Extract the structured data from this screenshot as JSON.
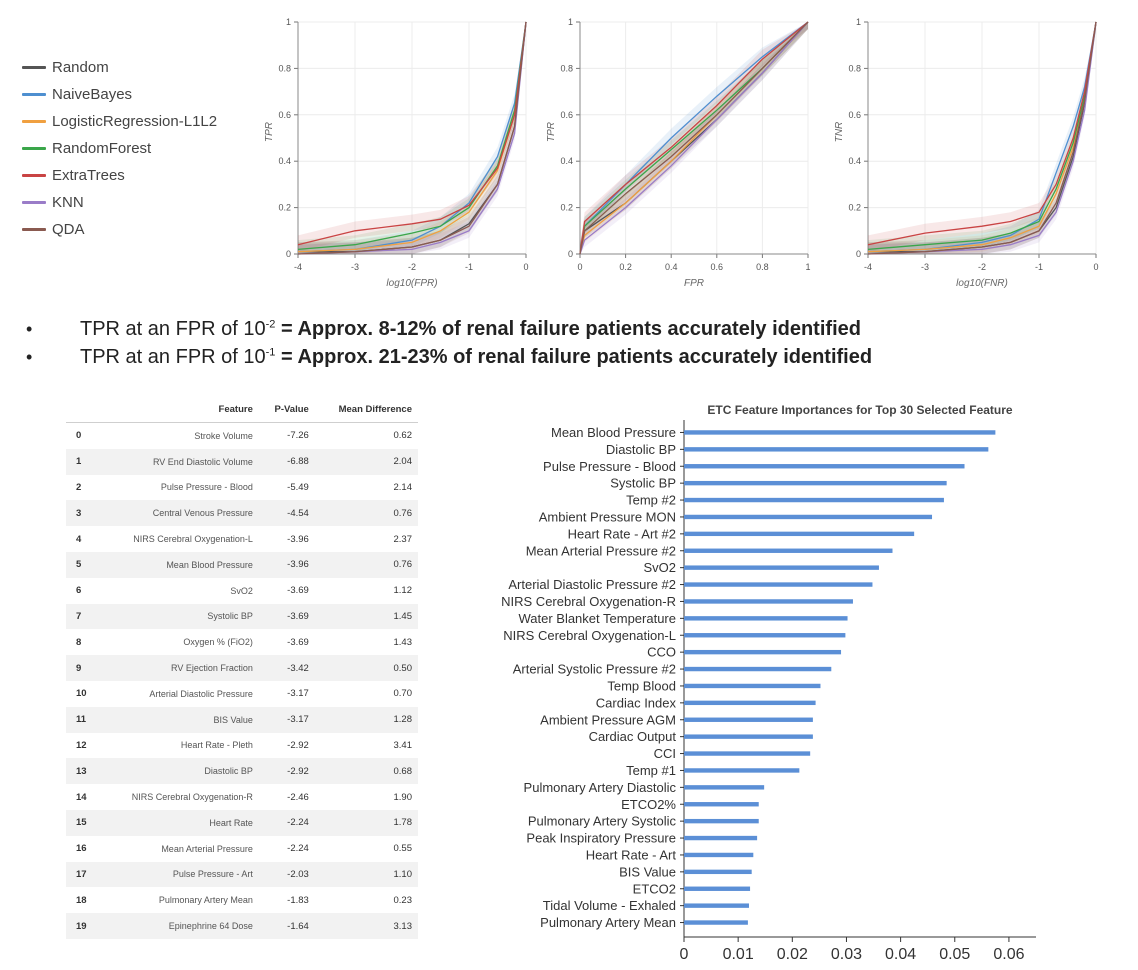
{
  "legend": [
    {
      "name": "Random",
      "color": "#555555"
    },
    {
      "name": "NaiveBayes",
      "color": "#4e8fd0"
    },
    {
      "name": "LogisticRegression-L1L2",
      "color": "#f0a040"
    },
    {
      "name": "RandomForest",
      "color": "#3aa64a"
    },
    {
      "name": "ExtraTrees",
      "color": "#c94444"
    },
    {
      "name": "KNN",
      "color": "#9a7cc8"
    },
    {
      "name": "QDA",
      "color": "#8a5a50"
    }
  ],
  "bullets": [
    {
      "dot": "•",
      "prefix": "TPR at an FPR of 10",
      "exp": "-2",
      "strong": " = Approx. 8-12% of renal failure patients accurately identified"
    },
    {
      "dot": "•",
      "prefix": "TPR at an FPR of 10",
      "exp": "-1",
      "strong": " = Approx. 21-23% of renal failure patients accurately identified"
    }
  ],
  "table": {
    "headers": [
      "",
      "Feature",
      "P-Value",
      "Mean Difference"
    ],
    "rows": [
      [
        "0",
        "Stroke Volume",
        "-7.26",
        "0.62"
      ],
      [
        "1",
        "RV End Diastolic Volume",
        "-6.88",
        "2.04"
      ],
      [
        "2",
        "Pulse Pressure - Blood",
        "-5.49",
        "2.14"
      ],
      [
        "3",
        "Central Venous Pressure",
        "-4.54",
        "0.76"
      ],
      [
        "4",
        "NIRS Cerebral Oxygenation-L",
        "-3.96",
        "2.37"
      ],
      [
        "5",
        "Mean Blood Pressure",
        "-3.96",
        "0.76"
      ],
      [
        "6",
        "SvO2",
        "-3.69",
        "1.12"
      ],
      [
        "7",
        "Systolic BP",
        "-3.69",
        "1.45"
      ],
      [
        "8",
        "Oxygen % (FiO2)",
        "-3.69",
        "1.43"
      ],
      [
        "9",
        "RV Ejection Fraction",
        "-3.42",
        "0.50"
      ],
      [
        "10",
        "Arterial Diastolic Pressure",
        "-3.17",
        "0.70"
      ],
      [
        "11",
        "BIS Value",
        "-3.17",
        "1.28"
      ],
      [
        "12",
        "Heart Rate - Pleth",
        "-2.92",
        "3.41"
      ],
      [
        "13",
        "Diastolic BP",
        "-2.92",
        "0.68"
      ],
      [
        "14",
        "NIRS Cerebral Oxygenation-R",
        "-2.46",
        "1.90"
      ],
      [
        "15",
        "Heart Rate",
        "-2.24",
        "1.78"
      ],
      [
        "16",
        "Mean Arterial Pressure",
        "-2.24",
        "0.55"
      ],
      [
        "17",
        "Pulse Pressure - Art",
        "-2.03",
        "1.10"
      ],
      [
        "18",
        "Pulmonary Artery Mean",
        "-1.83",
        "0.23"
      ],
      [
        "19",
        "Epinephrine 64 Dose",
        "-1.64",
        "3.13"
      ]
    ]
  },
  "chart_data": [
    {
      "type": "line",
      "xlabel": "log10(FPR)",
      "ylabel": "TPR",
      "xlim": [
        -4,
        0
      ],
      "ylim": [
        0,
        1
      ],
      "xticks": [
        "-4",
        "-3",
        "-2",
        "-1",
        "0"
      ],
      "yticks": [
        "0",
        "0.2",
        "0.4",
        "0.6",
        "0.8",
        "1"
      ],
      "grid": true,
      "series": [
        {
          "name": "Random",
          "x": [
            -4,
            -3,
            -2,
            -1.5,
            -1,
            -0.5,
            -0.2,
            0
          ],
          "y": [
            0.01,
            0.01,
            0.03,
            0.06,
            0.13,
            0.3,
            0.55,
            1.0
          ]
        },
        {
          "name": "NaiveBayes",
          "x": [
            -4,
            -3,
            -2,
            -1.5,
            -1,
            -0.5,
            -0.2,
            0
          ],
          "y": [
            0.01,
            0.02,
            0.06,
            0.12,
            0.22,
            0.42,
            0.65,
            1.0
          ]
        },
        {
          "name": "LogisticRegression-L1L2",
          "x": [
            -4,
            -3,
            -2,
            -1.5,
            -1,
            -0.5,
            -0.2,
            0
          ],
          "y": [
            0.01,
            0.02,
            0.05,
            0.1,
            0.18,
            0.36,
            0.6,
            1.0
          ]
        },
        {
          "name": "RandomForest",
          "x": [
            -4,
            -3,
            -2,
            -1.5,
            -1,
            -0.5,
            -0.2,
            0
          ],
          "y": [
            0.02,
            0.04,
            0.09,
            0.12,
            0.2,
            0.38,
            0.62,
            1.0
          ]
        },
        {
          "name": "ExtraTrees",
          "x": [
            -4,
            -3,
            -2,
            -1.5,
            -1,
            -0.5,
            -0.2,
            0
          ],
          "y": [
            0.04,
            0.1,
            0.13,
            0.15,
            0.21,
            0.37,
            0.6,
            1.0
          ]
        },
        {
          "name": "KNN",
          "x": [
            -4,
            -3,
            -2,
            -1.5,
            -1,
            -0.5,
            -0.2,
            0
          ],
          "y": [
            0.0,
            0.01,
            0.02,
            0.05,
            0.1,
            0.28,
            0.52,
            1.0
          ]
        },
        {
          "name": "QDA",
          "x": [
            -4,
            -3,
            -2,
            -1.5,
            -1,
            -0.5,
            -0.2,
            0
          ],
          "y": [
            0.0,
            0.01,
            0.03,
            0.06,
            0.12,
            0.3,
            0.55,
            1.0
          ]
        }
      ]
    },
    {
      "type": "line",
      "xlabel": "FPR",
      "ylabel": "TPR",
      "xlim": [
        0,
        1
      ],
      "ylim": [
        0,
        1
      ],
      "xticks": [
        "0",
        "0.2",
        "0.4",
        "0.6",
        "0.8",
        "1"
      ],
      "yticks": [
        "0",
        "0.2",
        "0.4",
        "0.6",
        "0.8",
        "1"
      ],
      "grid": true,
      "series": [
        {
          "name": "Random",
          "x": [
            0,
            0.02,
            0.2,
            0.4,
            0.6,
            0.8,
            1
          ],
          "y": [
            0,
            0.1,
            0.22,
            0.4,
            0.58,
            0.78,
            1.0
          ]
        },
        {
          "name": "NaiveBayes",
          "x": [
            0,
            0.02,
            0.2,
            0.4,
            0.6,
            0.8,
            1
          ],
          "y": [
            0,
            0.12,
            0.3,
            0.5,
            0.68,
            0.85,
            1.0
          ]
        },
        {
          "name": "LogisticRegression-L1L2",
          "x": [
            0,
            0.02,
            0.2,
            0.4,
            0.6,
            0.8,
            1
          ],
          "y": [
            0,
            0.08,
            0.22,
            0.4,
            0.6,
            0.8,
            1.0
          ]
        },
        {
          "name": "RandomForest",
          "x": [
            0,
            0.02,
            0.2,
            0.4,
            0.6,
            0.8,
            1
          ],
          "y": [
            0,
            0.12,
            0.28,
            0.45,
            0.62,
            0.8,
            1.0
          ]
        },
        {
          "name": "ExtraTrees",
          "x": [
            0,
            0.02,
            0.2,
            0.4,
            0.6,
            0.8,
            1
          ],
          "y": [
            0,
            0.14,
            0.3,
            0.46,
            0.64,
            0.84,
            1.0
          ]
        },
        {
          "name": "KNN",
          "x": [
            0,
            0.02,
            0.2,
            0.4,
            0.6,
            0.8,
            1
          ],
          "y": [
            0,
            0.06,
            0.2,
            0.38,
            0.58,
            0.78,
            1.0
          ]
        },
        {
          "name": "QDA",
          "x": [
            0,
            0.02,
            0.2,
            0.4,
            0.6,
            0.8,
            1
          ],
          "y": [
            0,
            0.1,
            0.26,
            0.42,
            0.6,
            0.8,
            1.0
          ]
        }
      ]
    },
    {
      "type": "line",
      "xlabel": "log10(FNR)",
      "ylabel": "TNR",
      "xlim": [
        -4,
        0
      ],
      "ylim": [
        0,
        1
      ],
      "xticks": [
        "-4",
        "-3",
        "-2",
        "-1",
        "0"
      ],
      "yticks": [
        "0",
        "0.2",
        "0.4",
        "0.6",
        "0.8",
        "1"
      ],
      "grid": true,
      "series": [
        {
          "name": "Random",
          "x": [
            -4,
            -3,
            -2,
            -1.5,
            -1,
            -0.7,
            -0.4,
            -0.2,
            0
          ],
          "y": [
            0.01,
            0.01,
            0.03,
            0.05,
            0.1,
            0.2,
            0.42,
            0.65,
            1.0
          ]
        },
        {
          "name": "NaiveBayes",
          "x": [
            -4,
            -3,
            -2,
            -1.5,
            -1,
            -0.7,
            -0.4,
            -0.2,
            0
          ],
          "y": [
            0.01,
            0.02,
            0.05,
            0.08,
            0.15,
            0.35,
            0.55,
            0.72,
            1.0
          ]
        },
        {
          "name": "LogisticRegression-L1L2",
          "x": [
            -4,
            -3,
            -2,
            -1.5,
            -1,
            -0.7,
            -0.4,
            -0.2,
            0
          ],
          "y": [
            0.01,
            0.02,
            0.04,
            0.07,
            0.12,
            0.26,
            0.46,
            0.68,
            1.0
          ]
        },
        {
          "name": "RandomForest",
          "x": [
            -4,
            -3,
            -2,
            -1.5,
            -1,
            -0.7,
            -0.4,
            -0.2,
            0
          ],
          "y": [
            0.02,
            0.04,
            0.06,
            0.09,
            0.14,
            0.28,
            0.48,
            0.68,
            1.0
          ]
        },
        {
          "name": "ExtraTrees",
          "x": [
            -4,
            -3,
            -2,
            -1.5,
            -1,
            -0.7,
            -0.4,
            -0.2,
            0
          ],
          "y": [
            0.04,
            0.09,
            0.12,
            0.14,
            0.18,
            0.3,
            0.5,
            0.7,
            1.0
          ]
        },
        {
          "name": "KNN",
          "x": [
            -4,
            -3,
            -2,
            -1.5,
            -1,
            -0.7,
            -0.4,
            -0.2,
            0
          ],
          "y": [
            0.0,
            0.01,
            0.02,
            0.04,
            0.08,
            0.18,
            0.4,
            0.62,
            1.0
          ]
        },
        {
          "name": "QDA",
          "x": [
            -4,
            -3,
            -2,
            -1.5,
            -1,
            -0.7,
            -0.4,
            -0.2,
            0
          ],
          "y": [
            0.0,
            0.01,
            0.03,
            0.05,
            0.1,
            0.22,
            0.44,
            0.66,
            1.0
          ]
        }
      ]
    },
    {
      "type": "bar",
      "orientation": "horizontal",
      "title": "ETC Feature Importances for Top 30 Selected Feature",
      "xlim": [
        0,
        0.065
      ],
      "xticks": [
        "0",
        "0.01",
        "0.02",
        "0.03",
        "0.04",
        "0.05",
        "0.06"
      ],
      "bar_color": "#5b8fd6",
      "categories": [
        "Mean Blood Pressure",
        "Diastolic BP",
        "Pulse Pressure - Blood",
        "Systolic BP",
        "Temp #2",
        "Ambient Pressure MON",
        "Heart Rate - Art #2",
        "Mean Arterial Pressure #2",
        "SvO2",
        "Arterial Diastolic Pressure #2",
        "NIRS Cerebral Oxygenation-R",
        "Water Blanket Temperature",
        "NIRS Cerebral Oxygenation-L",
        "CCO",
        "Arterial Systolic Pressure #2",
        "Temp Blood",
        "Cardiac Index",
        "Ambient Pressure AGM",
        "Cardiac Output",
        "CCI",
        "Temp #1",
        "Pulmonary Artery Diastolic",
        "ETCO2%",
        "Pulmonary Artery Systolic",
        "Peak Inspiratory Pressure",
        "Heart Rate - Art",
        "BIS Value",
        "ETCO2",
        "Tidal Volume - Exhaled",
        "Pulmonary Artery Mean"
      ],
      "values": [
        0.0575,
        0.0562,
        0.0518,
        0.0485,
        0.048,
        0.0458,
        0.0425,
        0.0385,
        0.036,
        0.0348,
        0.0312,
        0.0302,
        0.0298,
        0.029,
        0.0272,
        0.0252,
        0.0243,
        0.0238,
        0.0238,
        0.0233,
        0.0213,
        0.0148,
        0.0138,
        0.0138,
        0.0135,
        0.0128,
        0.0125,
        0.0122,
        0.012,
        0.0118
      ]
    }
  ]
}
